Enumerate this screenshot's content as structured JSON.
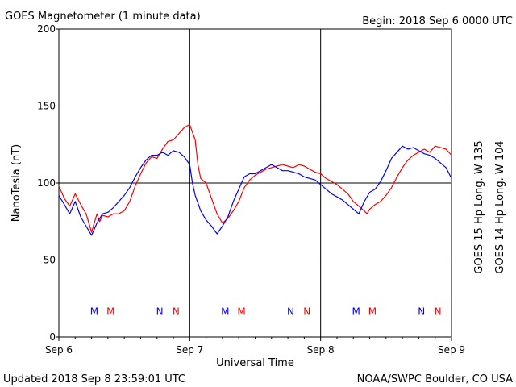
{
  "header": {
    "title": "GOES Magnetometer (1 minute data)",
    "begin": "Begin:  2018 Sep 6 0000 UTC"
  },
  "footer": {
    "updated": "Updated 2018 Sep  8 23:59:01 UTC",
    "credit": "NOAA/SWPC Boulder, CO USA"
  },
  "chart_data": {
    "type": "line",
    "title": "GOES Magnetometer (1 minute data)",
    "xlabel": "Universal Time",
    "ylabel": "NanoTesla (nT)",
    "xlim": [
      0,
      72
    ],
    "ylim": [
      0,
      200
    ],
    "x_unit": "hours since 2018 Sep 6 0000 UTC",
    "x_ticks": [
      {
        "x": 0,
        "label": "Sep 6"
      },
      {
        "x": 24,
        "label": "Sep 7"
      },
      {
        "x": 48,
        "label": "Sep 8"
      },
      {
        "x": 72,
        "label": "Sep 9"
      }
    ],
    "y_ticks": [
      0,
      50,
      100,
      150,
      200
    ],
    "grid": true,
    "series": [
      {
        "name": "GOES 15 Hp  Long. W 135",
        "color": "#ff0000",
        "x": [
          0,
          1,
          2,
          3,
          4,
          5,
          6,
          7,
          7.5,
          8,
          9,
          10,
          11,
          12,
          13,
          14,
          15,
          16,
          17,
          18,
          19,
          20,
          21,
          22,
          23,
          24,
          24.5,
          25,
          25.5,
          26,
          27,
          28,
          29,
          30,
          31,
          32,
          33,
          34,
          35,
          36,
          37,
          38,
          39,
          40,
          41,
          42,
          43,
          44,
          45,
          46,
          47,
          48,
          49,
          50,
          51,
          52,
          53,
          54,
          55,
          56,
          56.5,
          57,
          58,
          59,
          60,
          61,
          62,
          63,
          64,
          65,
          66,
          67,
          68,
          69,
          70,
          71,
          72
        ],
        "values": [
          98,
          90,
          85,
          93,
          86,
          80,
          68,
          80,
          75,
          79,
          78,
          80,
          80,
          82,
          88,
          98,
          106,
          113,
          117,
          116,
          122,
          127,
          128,
          132,
          136,
          138,
          133,
          128,
          112,
          103,
          100,
          90,
          80,
          74,
          77,
          82,
          88,
          97,
          102,
          105,
          107,
          109,
          110,
          111,
          112,
          111,
          110,
          112,
          111,
          109,
          107,
          106,
          103,
          101,
          99,
          96,
          93,
          88,
          85,
          82,
          80,
          83,
          86,
          88,
          92,
          97,
          104,
          110,
          115,
          118,
          120,
          122,
          120,
          124,
          123,
          122,
          118
        ]
      },
      {
        "name": "GOES 14 Hp  Long. W 104",
        "color": "#0000ff",
        "x": [
          0,
          1,
          2,
          3,
          4,
          5,
          6,
          7,
          8,
          9,
          10,
          11,
          12,
          13,
          14,
          15,
          16,
          17,
          18,
          19,
          20,
          21,
          22,
          23,
          24,
          24.5,
          25,
          26,
          27,
          28,
          29,
          30,
          31,
          32,
          33,
          34,
          35,
          36,
          37,
          38,
          39,
          40,
          41,
          42,
          43,
          44,
          45,
          46,
          47,
          48,
          49,
          50,
          51,
          52,
          53,
          54,
          55,
          56,
          57,
          58,
          59,
          60,
          61,
          62,
          63,
          64,
          65,
          66,
          67,
          68,
          69,
          70,
          71,
          72
        ],
        "values": [
          92,
          86,
          80,
          88,
          78,
          72,
          66,
          74,
          80,
          81,
          84,
          88,
          92,
          97,
          104,
          110,
          115,
          118,
          118,
          120,
          118,
          121,
          120,
          117,
          112,
          100,
          92,
          82,
          76,
          72,
          67,
          72,
          78,
          88,
          96,
          104,
          106,
          106,
          108,
          110,
          112,
          110,
          108,
          108,
          107,
          106,
          104,
          103,
          102,
          99,
          96,
          93,
          91,
          89,
          86,
          83,
          80,
          88,
          94,
          96,
          101,
          108,
          116,
          120,
          124,
          122,
          123,
          121,
          119,
          118,
          116,
          113,
          110,
          103
        ]
      }
    ],
    "event_markers": [
      {
        "x": 6.5,
        "label": "M",
        "color": "#0000ff"
      },
      {
        "x": 9.5,
        "label": "M",
        "color": "#ff0000"
      },
      {
        "x": 18.5,
        "label": "N",
        "color": "#0000ff"
      },
      {
        "x": 21.5,
        "label": "N",
        "color": "#ff0000"
      },
      {
        "x": 30.5,
        "label": "M",
        "color": "#0000ff"
      },
      {
        "x": 33.5,
        "label": "M",
        "color": "#ff0000"
      },
      {
        "x": 42.5,
        "label": "N",
        "color": "#0000ff"
      },
      {
        "x": 45.5,
        "label": "N",
        "color": "#ff0000"
      },
      {
        "x": 54.5,
        "label": "M",
        "color": "#0000ff"
      },
      {
        "x": 57.5,
        "label": "M",
        "color": "#ff0000"
      },
      {
        "x": 66.5,
        "label": "N",
        "color": "#0000ff"
      },
      {
        "x": 69.5,
        "label": "N",
        "color": "#ff0000"
      }
    ],
    "marker_y": 17
  }
}
